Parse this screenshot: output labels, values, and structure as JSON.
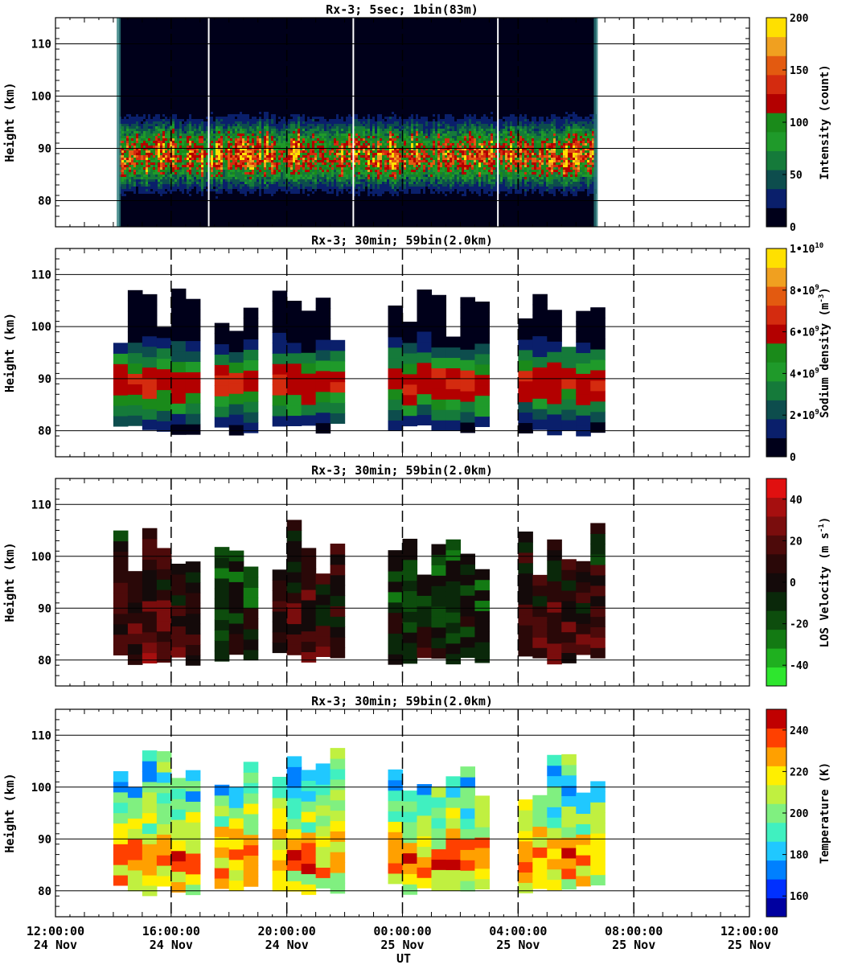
{
  "figure": {
    "xlabel": "UT",
    "x_ticks": [
      {
        "time": "12:00:00",
        "date": "24 Nov"
      },
      {
        "time": "16:00:00",
        "date": "24 Nov"
      },
      {
        "time": "20:00:00",
        "date": "24 Nov"
      },
      {
        "time": "00:00:00",
        "date": "25 Nov"
      },
      {
        "time": "04:00:00",
        "date": "25 Nov"
      },
      {
        "time": "08:00:00",
        "date": "25 Nov"
      },
      {
        "time": "12:00:00",
        "date": "25 Nov"
      }
    ],
    "xlim_hours": [
      0,
      24
    ],
    "ylim_km": [
      75,
      115
    ],
    "y_ticks": [
      80,
      90,
      100,
      110
    ],
    "dashed_lines_hours": [
      4,
      8,
      12,
      16,
      20
    ]
  },
  "chart_data": [
    {
      "type": "heatmap",
      "title": "Rx-3;  5sec; 1bin(83m)",
      "ylabel": "Height (km)",
      "colorbar_label": "Intensity (count)",
      "colorbar_ticks": [
        "0",
        "50",
        "100",
        "150",
        "200"
      ],
      "colorbar_range": [
        0,
        200
      ],
      "colorscale": [
        "#00001a",
        "#0a1f6b",
        "#0d4d4d",
        "#157a3a",
        "#1f9a2a",
        "#1a8a1a",
        "#b30000",
        "#d42b0f",
        "#e35a10",
        "#f0a020",
        "#ffe000"
      ],
      "observation_hours": [
        2.2,
        18.7
      ],
      "gaps_hours": [
        5.3,
        10.3,
        15.3
      ],
      "layer_center_km": 89,
      "layer_bottom_km": 81,
      "layer_top_km": 97,
      "peak_intensity": 200
    },
    {
      "type": "heatmap",
      "title": "Rx-3; 30min; 59bin(2.0km)",
      "ylabel": "Height (km)",
      "colorbar_label": "Sodium density (m^-3)",
      "colorbar_ticks": [
        "0",
        "2•10^9",
        "4•10^9",
        "6•10^9",
        "8•10^9",
        "1•10^10"
      ],
      "colorbar_range": [
        0,
        10000000000.0
      ],
      "colorscale": [
        "#00001a",
        "#0a1f6b",
        "#0d4d4d",
        "#157a3a",
        "#1f9a2a",
        "#1a8a1a",
        "#b30000",
        "#d42b0f",
        "#e35a10",
        "#f0a020",
        "#ffe000"
      ],
      "column_ranges_hours": [
        [
          2,
          5
        ],
        [
          5.5,
          7.0
        ],
        [
          7.5,
          10
        ],
        [
          11.5,
          15
        ],
        [
          16,
          19
        ]
      ],
      "peak_height_km": 88,
      "peak_value": 6500000000.0
    },
    {
      "type": "heatmap",
      "title": "Rx-3; 30min; 59bin(2.0km)",
      "ylabel": "Height (km)",
      "colorbar_label": "LOS Velocity (m s^-1)",
      "colorbar_ticks": [
        "-40",
        "-20",
        "0",
        "20",
        "40"
      ],
      "colorbar_range": [
        -50,
        50
      ],
      "colorscale": [
        "#2ee62e",
        "#1fb01f",
        "#137a13",
        "#0d4d0d",
        "#0a280a",
        "#140a0a",
        "#2a0808",
        "#4d0a0a",
        "#7a0d0d",
        "#a60f0f",
        "#e01010"
      ],
      "column_ranges_hours": [
        [
          2,
          5
        ],
        [
          5.5,
          7.0
        ],
        [
          7.5,
          10
        ],
        [
          11.5,
          15
        ],
        [
          16,
          19
        ]
      ]
    },
    {
      "type": "heatmap",
      "title": "Rx-3; 30min; 59bin(2.0km)",
      "ylabel": "Height (km)",
      "colorbar_label": "Temperature (K)",
      "colorbar_ticks": [
        "160",
        "180",
        "200",
        "220",
        "240"
      ],
      "colorbar_range": [
        150,
        250
      ],
      "colorscale": [
        "#0000a0",
        "#0030ff",
        "#0080ff",
        "#20c8ff",
        "#40f0c0",
        "#80f080",
        "#c0f040",
        "#ffef00",
        "#ffa000",
        "#ff4000",
        "#c00000"
      ],
      "column_ranges_hours": [
        [
          2,
          5
        ],
        [
          5.5,
          7.0
        ],
        [
          7.5,
          10
        ],
        [
          11.5,
          15
        ],
        [
          16,
          19
        ]
      ]
    }
  ]
}
